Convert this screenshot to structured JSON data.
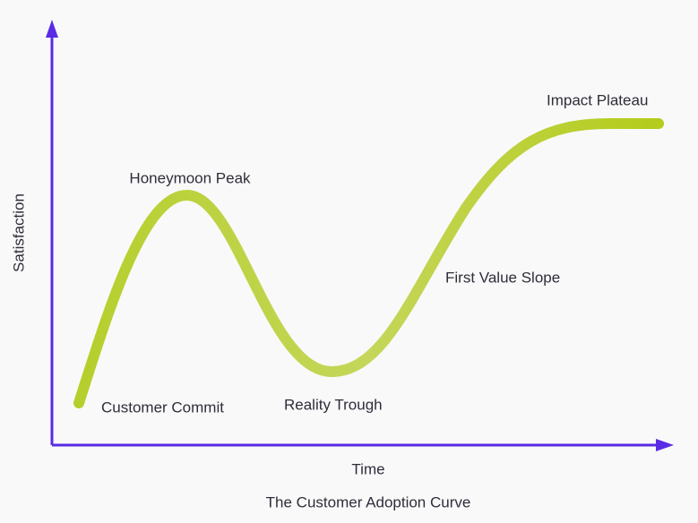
{
  "title": "The Customer Adoption Curve",
  "axes": {
    "x_label": "Time",
    "y_label": "Satisfaction"
  },
  "stages": [
    {
      "label": "Customer Commit"
    },
    {
      "label": "Honeymoon Peak"
    },
    {
      "label": "Reality Trough"
    },
    {
      "label": "First Value Slope"
    },
    {
      "label": "Impact Plateau"
    }
  ]
}
